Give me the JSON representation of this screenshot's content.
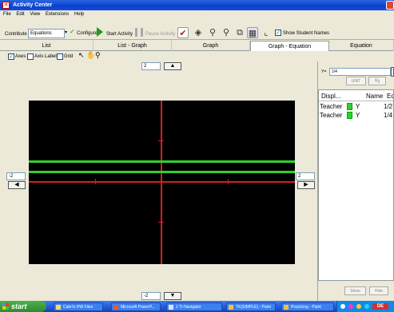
{
  "window": {
    "title": "Activity Center"
  },
  "menu": [
    "File",
    "Edit",
    "View",
    "Extensions",
    "Help"
  ],
  "toolbar": {
    "contribute_label": "Contribute",
    "contribute_value": "Equations",
    "configure_label": "Configure",
    "start_label": "Start Activity",
    "pause_label": "Pause Activity",
    "show_names_label": "Show Student Names"
  },
  "tabs": [
    "List",
    "List - Graph",
    "Graph",
    "Graph - Equation",
    "Equation"
  ],
  "active_tab": "Graph - Equation",
  "options": {
    "axes": "Axes",
    "axis_labels": "Axis Labels",
    "grid": "Grid"
  },
  "window_values": {
    "ymax": "2",
    "ymin": "-2",
    "xmin": "-2",
    "xmax": "2"
  },
  "graph": {
    "line_color": "#2fd02f",
    "axis_color": "#d21f1f",
    "lines": [
      {
        "label": "Y",
        "y": 0.5
      },
      {
        "label": "Y",
        "y": 0.25
      }
    ]
  },
  "equation_panel": {
    "input_prefix": "Y=",
    "input_value": "1/4",
    "unit_label": "UNIT",
    "columns": [
      "Displ...",
      "Name",
      "Eq"
    ],
    "rows": [
      {
        "display": "Teacher",
        "name": "Y",
        "equation": "1/2",
        "color": "#2fd02f"
      },
      {
        "display": "Teacher",
        "name": "Y",
        "equation": "1/4",
        "color": "#2fd02f"
      }
    ],
    "show_label": "Show",
    "hide_label": "Hide"
  },
  "taskbar": {
    "start": "start",
    "tasks": [
      "Cabri's HW Files",
      "Microsoft PowerP...",
      "2 TI-Navigator",
      "TK(SIMPLE) - Paint",
      "Practicing - Paint"
    ]
  }
}
